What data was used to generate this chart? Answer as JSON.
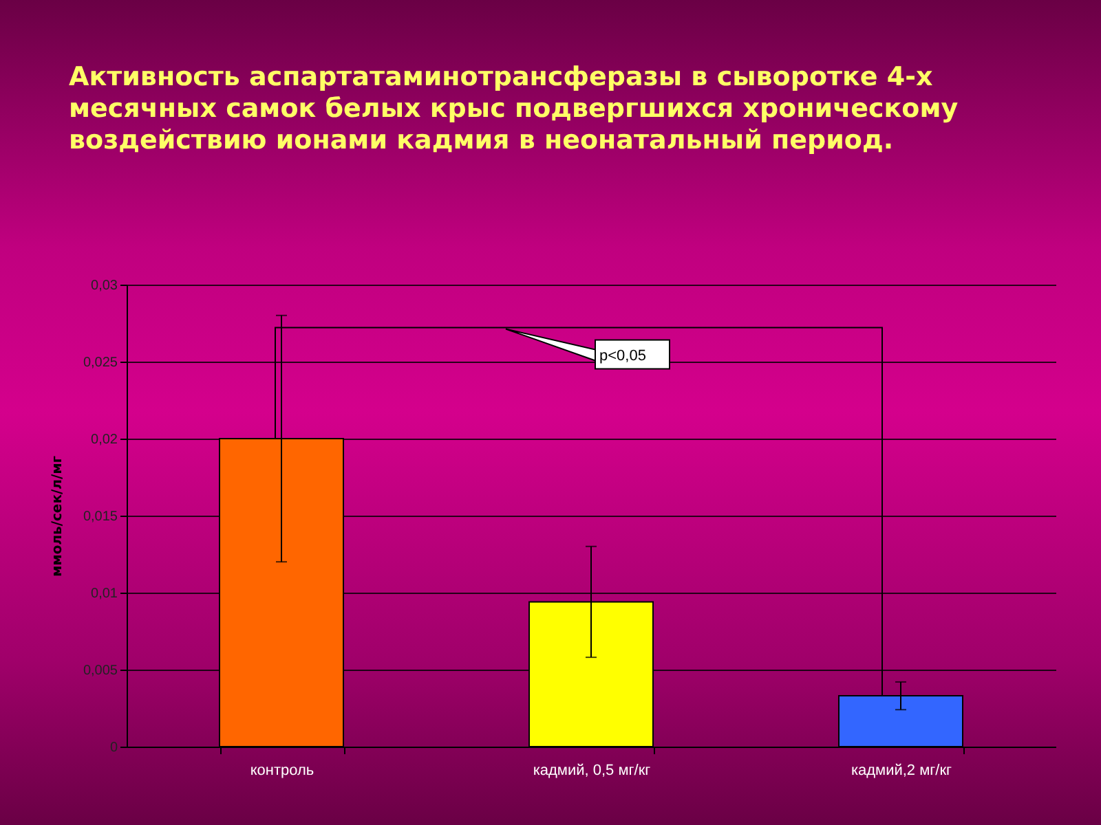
{
  "chart_data": {
    "type": "bar",
    "title": "Активность аспартатаминотрансферазы в сыворотке 4-х месячных самок белых крыс подвергшихся хроническому воздействию ионами кадмия в неонатальный период.",
    "ylabel": "ммоль/сек/л/мг",
    "categories": [
      "контроль",
      "кадмий, 0,5 мг/кг",
      "кадмий,2 мг/кг"
    ],
    "values": [
      0.02,
      0.0094,
      0.0033
    ],
    "colors": [
      "#ff6600",
      "#ffff00",
      "#3366ff"
    ],
    "errors": [
      [
        0.012,
        0.028
      ],
      [
        0.0058,
        0.013
      ],
      [
        0.0024,
        0.0042
      ]
    ],
    "annotations": [
      "p<0,05"
    ],
    "ylim": [
      0,
      0.03
    ],
    "yticks": [
      {
        "value": 0,
        "label": "0"
      },
      {
        "value": 0.005,
        "label": "0,005"
      },
      {
        "value": 0.01,
        "label": "0,01"
      },
      {
        "value": 0.015,
        "label": "0,015"
      },
      {
        "value": 0.02,
        "label": "0,02"
      },
      {
        "value": 0.025,
        "label": "0,025"
      },
      {
        "value": 0.03,
        "label": "0,03"
      }
    ],
    "grid": "y"
  }
}
